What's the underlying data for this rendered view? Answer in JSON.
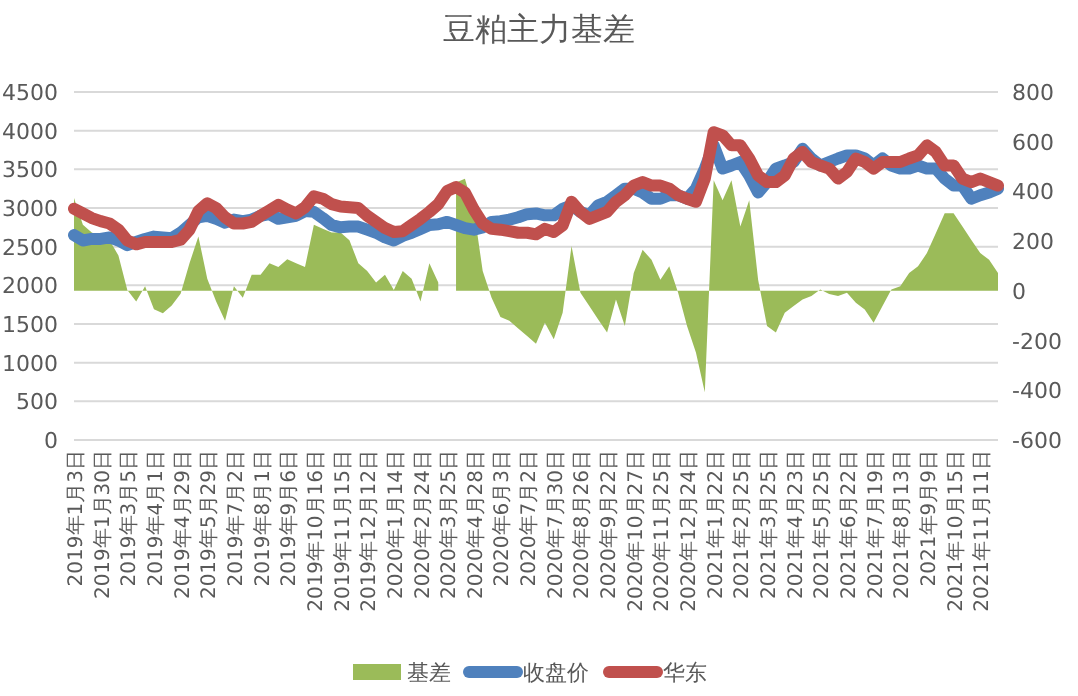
{
  "chart_data": {
    "type": "line",
    "title": "豆粕主力基差",
    "categories": [
      "2019年1月3日",
      null,
      null,
      "2019年1月30日",
      null,
      null,
      "2019年3月5日",
      null,
      null,
      "2019年4月1日",
      null,
      null,
      "2019年4月29日",
      null,
      null,
      "2019年5月29日",
      null,
      null,
      "2019年7月2日",
      null,
      null,
      "2019年8月1日",
      null,
      null,
      "2019年9月6日",
      null,
      null,
      "2019年10月16日",
      null,
      null,
      "2019年11月15日",
      null,
      null,
      "2019年12月12日",
      null,
      null,
      "2020年1月14日",
      null,
      null,
      "2020年2月24日",
      null,
      null,
      "2020年3月25日",
      null,
      null,
      "2020年4月28日",
      null,
      null,
      "2020年6月3日",
      null,
      null,
      "2020年7月2日",
      null,
      null,
      "2020年7月30日",
      null,
      null,
      "2020年8月26日",
      null,
      null,
      "2020年9月22日",
      null,
      null,
      "2020年10月27日",
      null,
      null,
      "2020年11月25日",
      null,
      null,
      "2020年12月24日",
      null,
      null,
      "2021年1月22日",
      null,
      null,
      "2021年2月25日",
      null,
      null,
      "2021年3月25日",
      null,
      null,
      "2021年4月23日",
      null,
      null,
      "2021年5月25日",
      null,
      null,
      "2021年6月22日",
      null,
      null,
      "2021年7月19日",
      null,
      null,
      "2021年8月13日",
      null,
      null,
      "2021年9月9日",
      null,
      null,
      "2021年10月15日",
      null,
      null,
      "2021年11月11日",
      null,
      null
    ],
    "series": [
      {
        "name": "基差",
        "type": "area",
        "axis": "y2",
        "color": "#9bbb59",
        "values": [
          374,
          266,
          235,
          219,
          204,
          142,
          3,
          -43,
          19,
          -74,
          -90,
          -59,
          -12,
          111,
          219,
          49,
          -43,
          -120,
          19,
          -28,
          65,
          65,
          111,
          96,
          127,
          111,
          96,
          266,
          250,
          235,
          235,
          204,
          111,
          80,
          34,
          65,
          3,
          80,
          49,
          -43,
          111,
          34,
          null,
          436,
          451,
          328,
          80,
          -28,
          -105,
          -120,
          -151,
          -182,
          -213,
          -128,
          -195,
          -88,
          180,
          -8,
          -61,
          -115,
          -168,
          -35,
          -141,
          72,
          165,
          125,
          45,
          99,
          -8,
          -141,
          -248,
          -408,
          445,
          365,
          445,
          259,
          365,
          45,
          -141,
          -168,
          -88,
          -61,
          -35,
          -21,
          5,
          -13,
          -21,
          -8,
          -48,
          -75,
          -128,
          -61,
          5,
          19,
          72,
          99,
          152,
          232,
          312,
          312,
          259,
          205,
          152,
          125,
          72
        ]
      },
      {
        "name": "收盘价",
        "color": "#4f81bd",
        "values": [
          2650,
          2580,
          2600,
          2600,
          2620,
          2580,
          2520,
          2560,
          2600,
          2630,
          2620,
          2610,
          2680,
          2780,
          2880,
          2900,
          2860,
          2810,
          2850,
          2830,
          2850,
          2900,
          2920,
          2860,
          2880,
          2900,
          2960,
          2950,
          2870,
          2780,
          2750,
          2760,
          2760,
          2720,
          2680,
          2620,
          2580,
          2640,
          2680,
          2730,
          2780,
          2790,
          2820,
          2780,
          2740,
          2720,
          2750,
          2820,
          2830,
          2850,
          2880,
          2920,
          2930,
          2905,
          2905,
          2990,
          3035,
          2950,
          2905,
          3035,
          3080,
          3165,
          3250,
          3250,
          3200,
          3120,
          3120,
          3165,
          3165,
          3120,
          3250,
          3510,
          3810,
          3510,
          3550,
          3595,
          3420,
          3200,
          3335,
          3510,
          3550,
          3595,
          3765,
          3640,
          3550,
          3595,
          3640,
          3680,
          3680,
          3640,
          3550,
          3640,
          3550,
          3510,
          3510,
          3550,
          3510,
          3510,
          3380,
          3290,
          3290,
          3120,
          3165,
          3200,
          3250
        ]
      },
      {
        "name": "华东",
        "color": "#c0504d",
        "values": [
          2990,
          2930,
          2870,
          2830,
          2800,
          2720,
          2580,
          2530,
          2560,
          2560,
          2560,
          2560,
          2590,
          2720,
          2960,
          3060,
          3000,
          2880,
          2800,
          2800,
          2820,
          2900,
          2970,
          3040,
          2980,
          2930,
          3010,
          3150,
          3120,
          3050,
          3020,
          3010,
          3000,
          2900,
          2820,
          2740,
          2690,
          2700,
          2780,
          2860,
          2950,
          3050,
          3220,
          3270,
          3200,
          2980,
          2800,
          2730,
          2720,
          2700,
          2680,
          2680,
          2660,
          2730,
          2690,
          2775,
          3080,
          2950,
          2860,
          2905,
          2950,
          3080,
          3165,
          3290,
          3335,
          3290,
          3290,
          3250,
          3165,
          3120,
          3080,
          3380,
          3980,
          3940,
          3810,
          3810,
          3640,
          3420,
          3335,
          3335,
          3420,
          3640,
          3725,
          3595,
          3550,
          3510,
          3380,
          3465,
          3640,
          3595,
          3510,
          3595,
          3595,
          3595,
          3640,
          3680,
          3810,
          3725,
          3550,
          3550,
          3380,
          3335,
          3380,
          3335,
          3290
        ]
      }
    ],
    "ylim": [
      0,
      4500
    ],
    "yticks": [
      0,
      500,
      1000,
      1500,
      2000,
      2500,
      3000,
      3500,
      4000,
      4500
    ],
    "y2lim": [
      -600,
      800
    ],
    "y2ticks": [
      -600,
      -400,
      -200,
      0,
      200,
      400,
      600,
      800
    ],
    "grid": "y",
    "legend": "bottom"
  }
}
